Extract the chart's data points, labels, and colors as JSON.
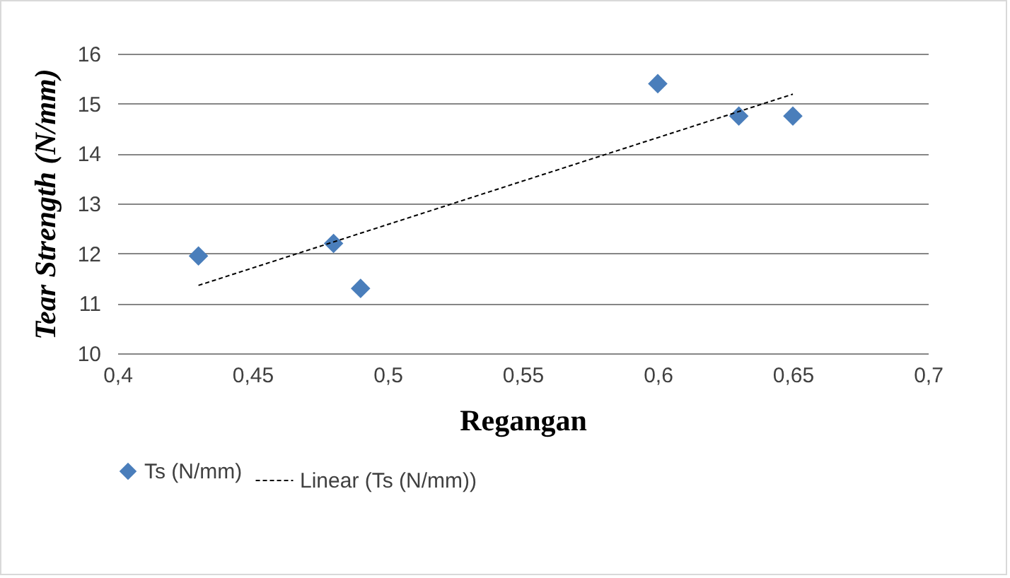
{
  "chart_data": {
    "type": "scatter",
    "xlabel": "Regangan",
    "ylabel": "Tear Strength (N/mm)",
    "xlim": [
      0.4,
      0.7
    ],
    "xticks": [
      {
        "value": 0.4,
        "label": "0,4"
      },
      {
        "value": 0.45,
        "label": "0,45"
      },
      {
        "value": 0.5,
        "label": "0,5"
      },
      {
        "value": 0.55,
        "label": "0,55"
      },
      {
        "value": 0.6,
        "label": "0,6"
      },
      {
        "value": 0.65,
        "label": "0,65"
      },
      {
        "value": 0.7,
        "label": "0,7"
      }
    ],
    "ylim": [
      10,
      16
    ],
    "yticks": [
      10,
      11,
      12,
      13,
      14,
      15,
      16
    ],
    "grid": "y",
    "legend": "bottom",
    "series": [
      {
        "name": "Ts (N/mm)",
        "marker": "diamond",
        "color": "#4a7ebb",
        "x": [
          0.43,
          0.48,
          0.49,
          0.6,
          0.63,
          0.65
        ],
        "values": [
          11.95,
          12.2,
          11.3,
          15.4,
          14.75,
          14.75
        ]
      },
      {
        "name": "Linear (Ts (N/mm))",
        "type": "line",
        "line_style": "dashed",
        "marker": "none",
        "color": "#000000",
        "x": [
          0.43,
          0.65
        ],
        "values": [
          11.36,
          15.19
        ]
      }
    ]
  }
}
